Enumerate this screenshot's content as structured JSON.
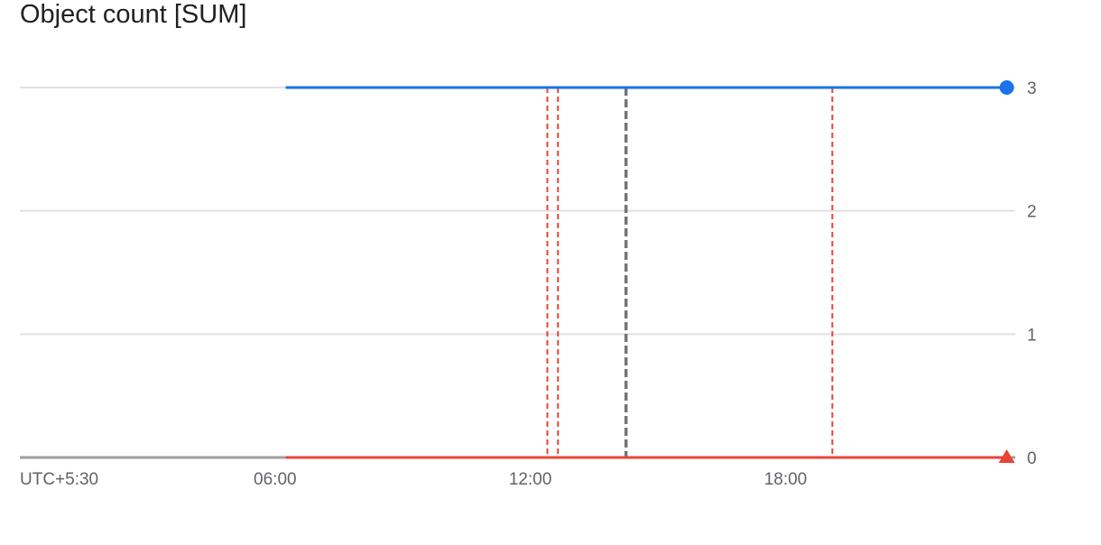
{
  "chart_data": {
    "type": "line",
    "title": "Object count [SUM]",
    "x_tick_labels": [
      "UTC+5:30",
      "06:00",
      "12:00",
      "18:00"
    ],
    "x_tick_hours": [
      0,
      6,
      12,
      18
    ],
    "x_range_hours": [
      0,
      23.4
    ],
    "y_ticks": [
      0,
      1,
      2,
      3
    ],
    "ylim": [
      0,
      3
    ],
    "grid": true,
    "series": [
      {
        "color": "#1a73e8",
        "marker": "circle",
        "points": [
          [
            6.25,
            3
          ],
          [
            23.2,
            3
          ]
        ]
      },
      {
        "color": "#ea4335",
        "marker": "triangle",
        "points": [
          [
            6.25,
            0
          ],
          [
            23.2,
            0
          ]
        ]
      }
    ],
    "event_markers": [
      {
        "hour": 14.25,
        "color": "#757575",
        "style": "thick-dashed"
      },
      {
        "hour": 12.4,
        "color": "#ea4335",
        "style": "dashed"
      },
      {
        "hour": 12.65,
        "color": "#ea4335",
        "style": "dashed"
      },
      {
        "hour": 19.1,
        "color": "#ea4335",
        "style": "dashed"
      }
    ]
  }
}
